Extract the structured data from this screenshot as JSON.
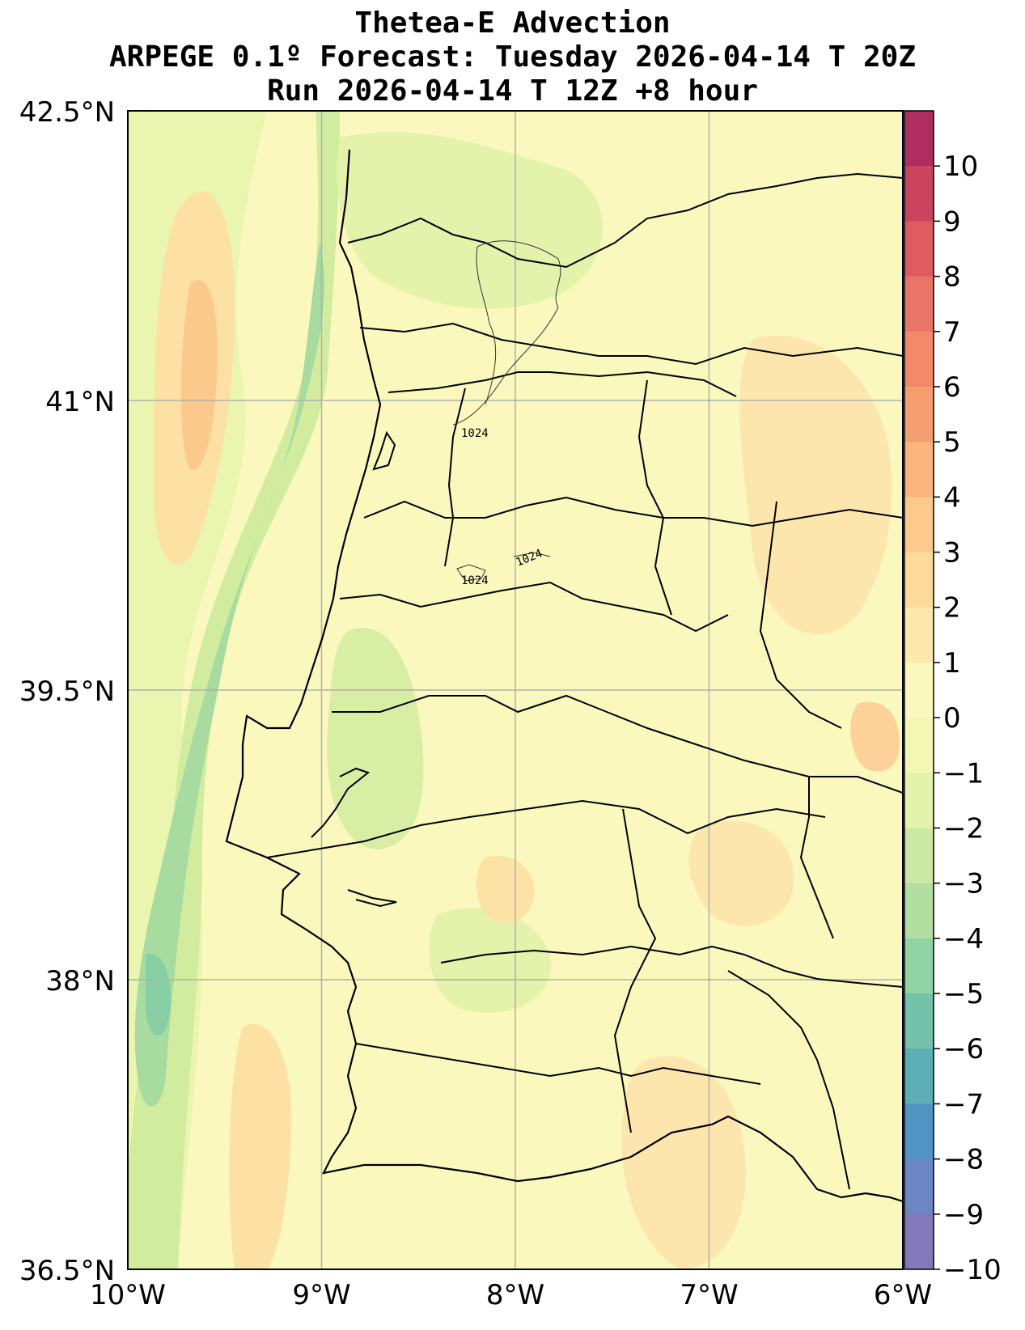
{
  "title": {
    "line1": "Thetea-E Advection",
    "line2": "ARPEGE 0.1º Forecast: Tuesday 2026-04-14 T 20Z",
    "line3": "Run 2026-04-14 T 12Z +8 hour"
  },
  "map": {
    "lon_range": [
      -10,
      -6
    ],
    "lat_range": [
      36.5,
      42.5
    ],
    "lat_ticks": [
      "42.5°N",
      "41°N",
      "39.5°N",
      "38°N",
      "36.5°N"
    ],
    "lon_ticks": [
      "10°W",
      "9°W",
      "8°W",
      "7°W",
      "6°W"
    ],
    "grid": true,
    "background_color": "#fbf8bd"
  },
  "colorbar": {
    "ticks": [
      "10",
      "9",
      "8",
      "7",
      "6",
      "5",
      "4",
      "3",
      "2",
      "1",
      "0",
      "−1",
      "−2",
      "−3",
      "−4",
      "−5",
      "−6",
      "−7",
      "−8",
      "−9",
      "−10"
    ],
    "colors": [
      "#b02d5f",
      "#c9445f",
      "#dc5c62",
      "#e97568",
      "#f1896a",
      "#f59e70",
      "#f9b57c",
      "#fdc98c",
      "#fdd99c",
      "#fde8ad",
      "#fbf8bd",
      "#f2f7b4",
      "#e3f3ac",
      "#cce9a3",
      "#b2df9f",
      "#92d3a5",
      "#74c2aa",
      "#5daeb5",
      "#5094c3",
      "#6b86c2",
      "#8379ba"
    ]
  },
  "contour_labels": [
    "1024",
    "1024",
    "1024"
  ]
}
